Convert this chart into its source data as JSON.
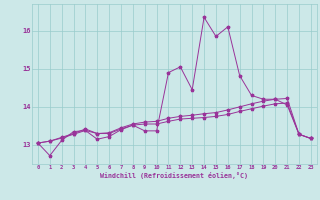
{
  "xlabel": "Windchill (Refroidissement éolien,°C)",
  "background_color": "#cce8e8",
  "grid_color": "#99cccc",
  "line_color": "#993399",
  "xlim": [
    -0.5,
    23.5
  ],
  "ylim": [
    12.5,
    16.7
  ],
  "yticks": [
    13,
    14,
    15,
    16
  ],
  "xticks": [
    0,
    1,
    2,
    3,
    4,
    5,
    6,
    7,
    8,
    9,
    10,
    11,
    12,
    13,
    14,
    15,
    16,
    17,
    18,
    19,
    20,
    21,
    22,
    23
  ],
  "series1": [
    13.05,
    12.72,
    13.12,
    13.35,
    13.38,
    13.15,
    13.22,
    13.4,
    13.52,
    13.37,
    13.37,
    14.9,
    15.05,
    14.45,
    16.35,
    15.85,
    16.1,
    14.82,
    14.3,
    14.2,
    14.2,
    14.05,
    13.28,
    13.17
  ],
  "series2": [
    13.05,
    13.1,
    13.18,
    13.28,
    13.38,
    13.3,
    13.3,
    13.42,
    13.52,
    13.55,
    13.55,
    13.62,
    13.68,
    13.7,
    13.72,
    13.75,
    13.8,
    13.88,
    13.95,
    14.02,
    14.08,
    14.1,
    13.28,
    13.17
  ],
  "series3": [
    13.05,
    13.1,
    13.2,
    13.3,
    13.42,
    13.3,
    13.32,
    13.45,
    13.55,
    13.6,
    13.62,
    13.7,
    13.75,
    13.78,
    13.82,
    13.85,
    13.92,
    14.0,
    14.08,
    14.15,
    14.2,
    14.22,
    13.28,
    13.17
  ]
}
